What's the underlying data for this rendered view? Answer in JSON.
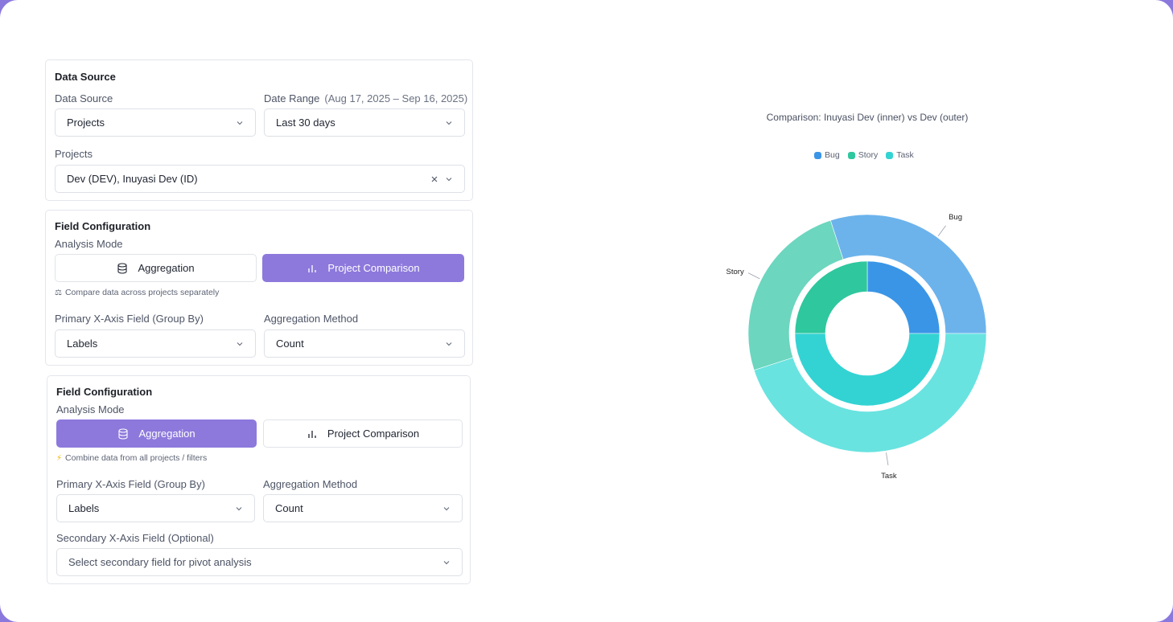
{
  "data_source_card": {
    "title": "Data Source",
    "data_source_label": "Data Source",
    "data_source_value": "Projects",
    "date_range_label": "Date Range",
    "date_range_sub": "(Aug 17, 2025 – Sep 16, 2025)",
    "date_range_value": "Last 30 days",
    "projects_label": "Projects",
    "projects_value": "Dev (DEV), Inuyasi Dev (ID)"
  },
  "field_config_1": {
    "title": "Field Configuration",
    "mode_label": "Analysis Mode",
    "aggregation_label": "Aggregation",
    "comparison_label": "Project Comparison",
    "active_mode": "comparison",
    "hint_icon": "⚖",
    "hint": "Compare data across projects separately",
    "primary_label": "Primary X-Axis Field (Group By)",
    "primary_value": "Labels",
    "method_label": "Aggregation Method",
    "method_value": "Count"
  },
  "field_config_2": {
    "title": "Field Configuration",
    "mode_label": "Analysis Mode",
    "aggregation_label": "Aggregation",
    "comparison_label": "Project Comparison",
    "active_mode": "aggregation",
    "hint_icon": "⚡",
    "hint": "Combine data from all projects / filters",
    "primary_label": "Primary X-Axis Field (Group By)",
    "primary_value": "Labels",
    "method_label": "Aggregation Method",
    "method_value": "Count",
    "secondary_label": "Secondary X-Axis Field (Optional)",
    "secondary_placeholder": "Select secondary field for pivot analysis"
  },
  "colors": {
    "accent": "#8d79dc",
    "bug": "#3a95e6",
    "story": "#2fc79e",
    "task": "#33d3d3"
  },
  "chart_data": {
    "type": "pie",
    "variant": "nested-donut",
    "title": "Comparison: Inuyasi Dev (inner) vs Dev (outer)",
    "categories": [
      "Bug",
      "Story",
      "Task"
    ],
    "series": [
      {
        "ring": "inner",
        "values": [
          25,
          25,
          50
        ]
      },
      {
        "ring": "outer",
        "values": [
          30,
          25,
          45
        ]
      }
    ],
    "legend": {
      "position": "top-center",
      "items": [
        "Bug",
        "Story",
        "Task"
      ]
    },
    "slice_labels": [
      "Bug",
      "Story",
      "Task"
    ]
  }
}
